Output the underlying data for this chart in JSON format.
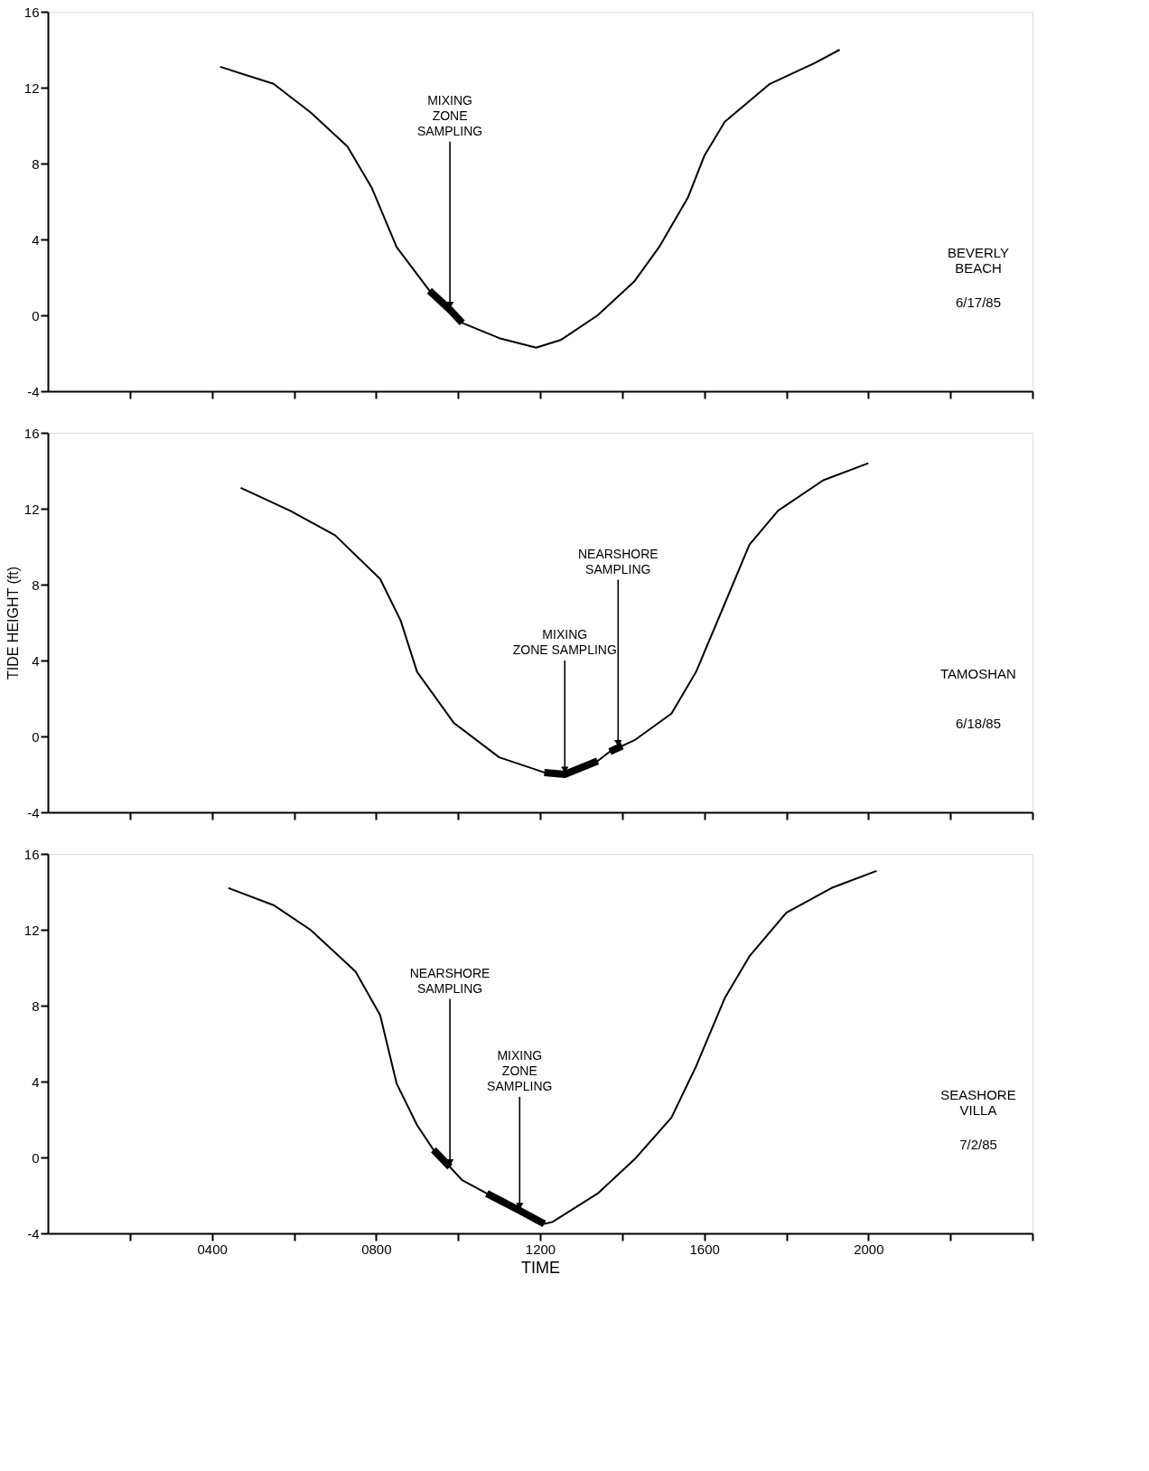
{
  "chart_data": [
    {
      "type": "line",
      "xlim": [
        0,
        2400
      ],
      "ylim": [
        -4,
        16
      ],
      "yticks": [
        -4,
        0,
        4,
        8,
        12,
        16
      ],
      "tick_labels": "y",
      "xticks": [
        200,
        400,
        600,
        800,
        1000,
        1200,
        1400,
        1600,
        1800,
        2000,
        2200,
        2400
      ],
      "series": [
        {
          "color": "#000000",
          "x": [
            420,
            550,
            640,
            730,
            790,
            850,
            930,
            980,
            1010,
            1100,
            1190,
            1250,
            1340,
            1430,
            1490,
            1560,
            1600,
            1650,
            1760,
            1870,
            1930
          ],
          "values": [
            13.1,
            12.2,
            10.7,
            8.9,
            6.7,
            3.6,
            1.3,
            0.3,
            -0.4,
            -1.2,
            -1.7,
            -1.3,
            0,
            1.8,
            3.6,
            6.2,
            8.4,
            10.2,
            12.2,
            13.3,
            14.0
          ]
        },
        {
          "color": "#000000",
          "x": [
            930,
            980,
            1010
          ],
          "values": [
            1.3,
            0.3,
            -0.4
          ]
        }
      ],
      "annotations": [
        {
          "text": "MIXING\nZONE\nSAMPLING",
          "x": 980,
          "y": 0.3
        },
        "BEVERLY\nBEACH",
        "6/17/85"
      ]
    },
    {
      "type": "line",
      "xlim": [
        0,
        2400
      ],
      "ylim": [
        -4,
        16
      ],
      "yticks": [
        -4,
        0,
        4,
        8,
        12,
        16
      ],
      "tick_labels": "y",
      "ylabel": "TIDE HEIGHT (ft)",
      "xticks": [
        200,
        400,
        600,
        800,
        1000,
        1200,
        1400,
        1600,
        1800,
        2000,
        2200,
        2400
      ],
      "series": [
        {
          "color": "#000000",
          "x": [
            470,
            590,
            700,
            810,
            860,
            900,
            990,
            1100,
            1210,
            1260,
            1340,
            1370,
            1390,
            1430,
            1520,
            1580,
            1650,
            1710,
            1780,
            1890,
            2000
          ],
          "values": [
            13.1,
            11.9,
            10.6,
            8.3,
            6.1,
            3.4,
            0.7,
            -1.1,
            -1.9,
            -2.0,
            -1.3,
            -0.8,
            -0.6,
            -0.2,
            1.2,
            3.4,
            7.0,
            10.1,
            11.9,
            13.5,
            14.4
          ]
        },
        {
          "color": "#000000",
          "x": [
            1210,
            1260,
            1340
          ],
          "values": [
            -1.9,
            -2.0,
            -1.3
          ]
        },
        {
          "color": "#000000",
          "x": [
            1370,
            1390,
            1400
          ],
          "values": [
            -0.8,
            -0.6,
            -0.5
          ]
        }
      ],
      "annotations": [
        {
          "text": "NEARSHORE\nSAMPLING",
          "x": 1390,
          "y": -0.6
        },
        {
          "text": "MIXING\nZONE SAMPLING",
          "x": 1260,
          "y": -2.0
        },
        "TAMOSHAN",
        "6/18/85"
      ]
    },
    {
      "type": "line",
      "xlim": [
        0,
        2400
      ],
      "ylim": [
        -4,
        16
      ],
      "yticks": [
        -4,
        0,
        4,
        8,
        12,
        16
      ],
      "xlabel": "TIME",
      "xticks": [
        {
          "value": 200,
          "label": null
        },
        {
          "value": 400,
          "label": "0400"
        },
        {
          "value": 600,
          "label": null
        },
        {
          "value": 800,
          "label": "0800"
        },
        {
          "value": 1000,
          "label": null
        },
        {
          "value": 1200,
          "label": "1200"
        },
        {
          "value": 1400,
          "label": null
        },
        {
          "value": 1600,
          "label": "1600"
        },
        {
          "value": 1800,
          "label": null
        },
        {
          "value": 2000,
          "label": "2000"
        },
        {
          "value": 2200,
          "label": null
        },
        {
          "value": 2400,
          "label": null
        }
      ],
      "series": [
        {
          "color": "#000000",
          "x": [
            440,
            550,
            640,
            750,
            810,
            850,
            900,
            940,
            980,
            1010,
            1070,
            1150,
            1210,
            1230,
            1340,
            1430,
            1520,
            1580,
            1650,
            1710,
            1800,
            1910,
            2020
          ],
          "values": [
            14.2,
            13.3,
            12.0,
            9.8,
            7.5,
            3.9,
            1.7,
            0.4,
            -0.5,
            -1.2,
            -1.9,
            -2.8,
            -3.5,
            -3.4,
            -1.9,
            -0.1,
            2.1,
            4.8,
            8.4,
            10.6,
            12.9,
            14.2,
            15.1
          ]
        },
        {
          "color": "#000000",
          "x": [
            940,
            980
          ],
          "values": [
            0.4,
            -0.5
          ]
        },
        {
          "color": "#000000",
          "x": [
            1070,
            1150,
            1210
          ],
          "values": [
            -1.9,
            -2.8,
            -3.5
          ]
        }
      ],
      "annotations": [
        {
          "text": "NEARSHORE\nSAMPLING",
          "x": 980,
          "y": -0.5
        },
        {
          "text": "MIXING\nZONE\nSAMPLING",
          "x": 1150,
          "y": -2.8
        },
        "SEASHORE\nVILLA",
        "7/2/85"
      ]
    }
  ]
}
